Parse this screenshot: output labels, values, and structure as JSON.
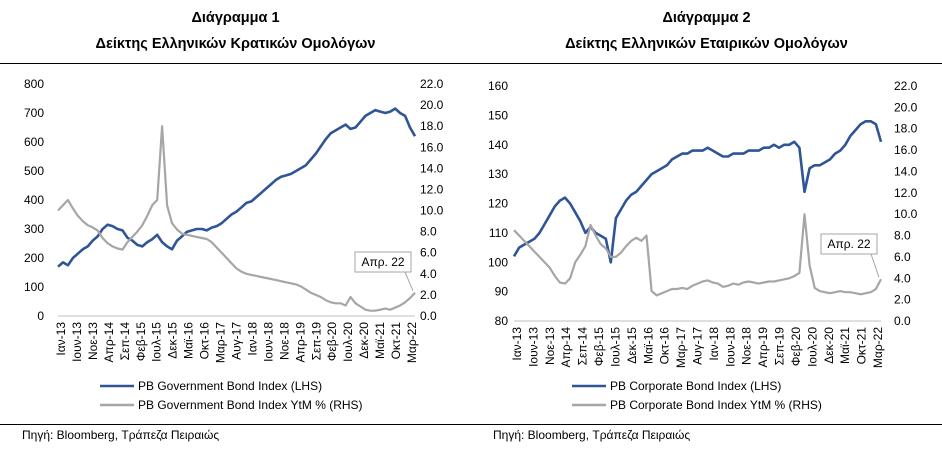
{
  "chart_data": [
    {
      "type": "line",
      "title": "Διάγραμμα 1",
      "subtitle": "Δείκτης Ελληνικών Κρατικών Ομολόγων",
      "x_tick_labels": [
        "Ιαν-13",
        "Ιουν-13",
        "Νοε-13",
        "Απρ-14",
        "Σεπ-14",
        "Φεβ-15",
        "Ιουλ-15",
        "Δεκ-15",
        "Μαϊ-16",
        "Οκτ-16",
        "Μαρ-17",
        "Αυγ-17",
        "Ιαν-18",
        "Ιουν-18",
        "Νοε-18",
        "Απρ-19",
        "Σεπ-19",
        "Φεβ-20",
        "Ιουλ-20",
        "Δεκ-20",
        "Μαϊ-21",
        "Οκτ-21",
        "Μαρ-22"
      ],
      "y_left_ticks": [
        "0",
        "100",
        "200",
        "300",
        "400",
        "500",
        "600",
        "700",
        "800"
      ],
      "y_right_ticks": [
        "0.0",
        "2.0",
        "4.0",
        "6.0",
        "8.0",
        "10.0",
        "12.0",
        "14.0",
        "16.0",
        "18.0",
        "20.0",
        "22.0"
      ],
      "ylim_left": [
        0,
        800
      ],
      "ylim_right": [
        0,
        22
      ],
      "grid": false,
      "legend_position": "bottom-left",
      "annotation": "Απρ. 22",
      "source": "Πηγή: Bloomberg, Τράπεζα Πειραιώς",
      "series": [
        {
          "name": "PB Government Bond Index (LHS)",
          "axis": "left",
          "color": "#2f5597",
          "values": [
            170,
            185,
            175,
            200,
            215,
            230,
            240,
            260,
            275,
            300,
            315,
            310,
            300,
            295,
            270,
            260,
            245,
            240,
            255,
            265,
            280,
            255,
            240,
            230,
            260,
            275,
            290,
            295,
            300,
            300,
            295,
            305,
            310,
            320,
            335,
            350,
            360,
            375,
            390,
            395,
            410,
            425,
            440,
            455,
            470,
            480,
            485,
            490,
            500,
            510,
            520,
            540,
            560,
            585,
            610,
            630,
            640,
            650,
            660,
            645,
            650,
            670,
            690,
            700,
            710,
            705,
            700,
            705,
            715,
            700,
            690,
            650,
            620
          ]
        },
        {
          "name": "PB Government Bond Index YtM % (RHS)",
          "axis": "right",
          "color": "#a6a6a6",
          "values": [
            10.0,
            10.5,
            11.0,
            10.2,
            9.5,
            9.0,
            8.6,
            8.4,
            8.1,
            7.4,
            6.9,
            6.6,
            6.4,
            6.3,
            7.0,
            7.5,
            8.0,
            8.6,
            9.5,
            10.5,
            11.0,
            18.0,
            10.5,
            8.8,
            8.2,
            7.8,
            7.7,
            7.6,
            7.5,
            7.4,
            7.3,
            7.0,
            6.5,
            6.0,
            5.5,
            5.0,
            4.5,
            4.2,
            4.0,
            3.9,
            3.8,
            3.7,
            3.6,
            3.5,
            3.4,
            3.3,
            3.2,
            3.1,
            3.0,
            2.8,
            2.5,
            2.2,
            2.0,
            1.8,
            1.5,
            1.3,
            1.2,
            1.2,
            1.0,
            1.8,
            1.2,
            0.9,
            0.6,
            0.5,
            0.5,
            0.6,
            0.7,
            0.6,
            0.8,
            1.0,
            1.3,
            1.7,
            2.2
          ]
        }
      ]
    },
    {
      "type": "line",
      "title": "Διάγραμμα 2",
      "subtitle": "Δείκτης Ελληνικών Εταιρικών Ομολόγων",
      "x_tick_labels": [
        "Ιαν-13",
        "Ιουν-13",
        "Νοε-13",
        "Απρ-14",
        "Σεπ-14",
        "Φεβ-15",
        "Ιουλ-15",
        "Δεκ-15",
        "Μαϊ-16",
        "Οκτ-16",
        "Μαρ-17",
        "Αυγ-17",
        "Ιαν-18",
        "Ιουν-18",
        "Νοε-18",
        "Απρ-19",
        "Σεπ-19",
        "Φεβ-20",
        "Ιουλ-20",
        "Δεκ-20",
        "Μαϊ-21",
        "Οκτ-21",
        "Μαρ-22"
      ],
      "y_left_ticks": [
        "80",
        "90",
        "100",
        "110",
        "120",
        "130",
        "140",
        "150",
        "160"
      ],
      "y_right_ticks": [
        "0.0",
        "2.0",
        "4.0",
        "6.0",
        "8.0",
        "10.0",
        "12.0",
        "14.0",
        "16.0",
        "18.0",
        "20.0",
        "22.0"
      ],
      "ylim_left": [
        80,
        160
      ],
      "ylim_right": [
        0,
        22
      ],
      "grid": false,
      "legend_position": "bottom-left",
      "annotation": "Απρ. 22",
      "source": "Πηγή: Bloomberg, Τράπεζα Πειραιώς",
      "series": [
        {
          "name": "PB Corporate Bond Index (LHS)",
          "axis": "left",
          "color": "#2f5597",
          "values": [
            102,
            105,
            106,
            107,
            108,
            110,
            113,
            116,
            119,
            121,
            122,
            120,
            117,
            114,
            110,
            112,
            110,
            109,
            108,
            100,
            115,
            118,
            121,
            123,
            124,
            126,
            128,
            130,
            131,
            132,
            133,
            135,
            136,
            137,
            137,
            138,
            138,
            138,
            139,
            138,
            137,
            136,
            136,
            137,
            137,
            137,
            138,
            138,
            138,
            139,
            139,
            140,
            139,
            140,
            140,
            141,
            139,
            124,
            132,
            133,
            133,
            134,
            135,
            137,
            138,
            140,
            143,
            145,
            147,
            148,
            148,
            147,
            141
          ]
        },
        {
          "name": "PB Corporate Bond Index  YtM % (RHS)",
          "axis": "right",
          "color": "#a6a6a6",
          "values": [
            8.5,
            8.0,
            7.5,
            7.0,
            6.5,
            6.0,
            5.5,
            5.0,
            4.2,
            3.6,
            3.5,
            4.0,
            5.5,
            6.2,
            7.0,
            9.0,
            8.0,
            7.2,
            6.8,
            6.0,
            6.0,
            6.4,
            7.0,
            7.5,
            7.8,
            7.5,
            8.0,
            2.8,
            2.4,
            2.6,
            2.8,
            3.0,
            3.0,
            3.1,
            3.0,
            3.3,
            3.5,
            3.7,
            3.8,
            3.6,
            3.5,
            3.2,
            3.3,
            3.5,
            3.4,
            3.6,
            3.7,
            3.6,
            3.5,
            3.6,
            3.7,
            3.7,
            3.8,
            3.9,
            4.0,
            4.2,
            4.5,
            10.0,
            5.2,
            3.1,
            2.8,
            2.7,
            2.6,
            2.7,
            2.8,
            2.7,
            2.7,
            2.6,
            2.5,
            2.6,
            2.7,
            3.0,
            3.9
          ]
        }
      ]
    }
  ]
}
